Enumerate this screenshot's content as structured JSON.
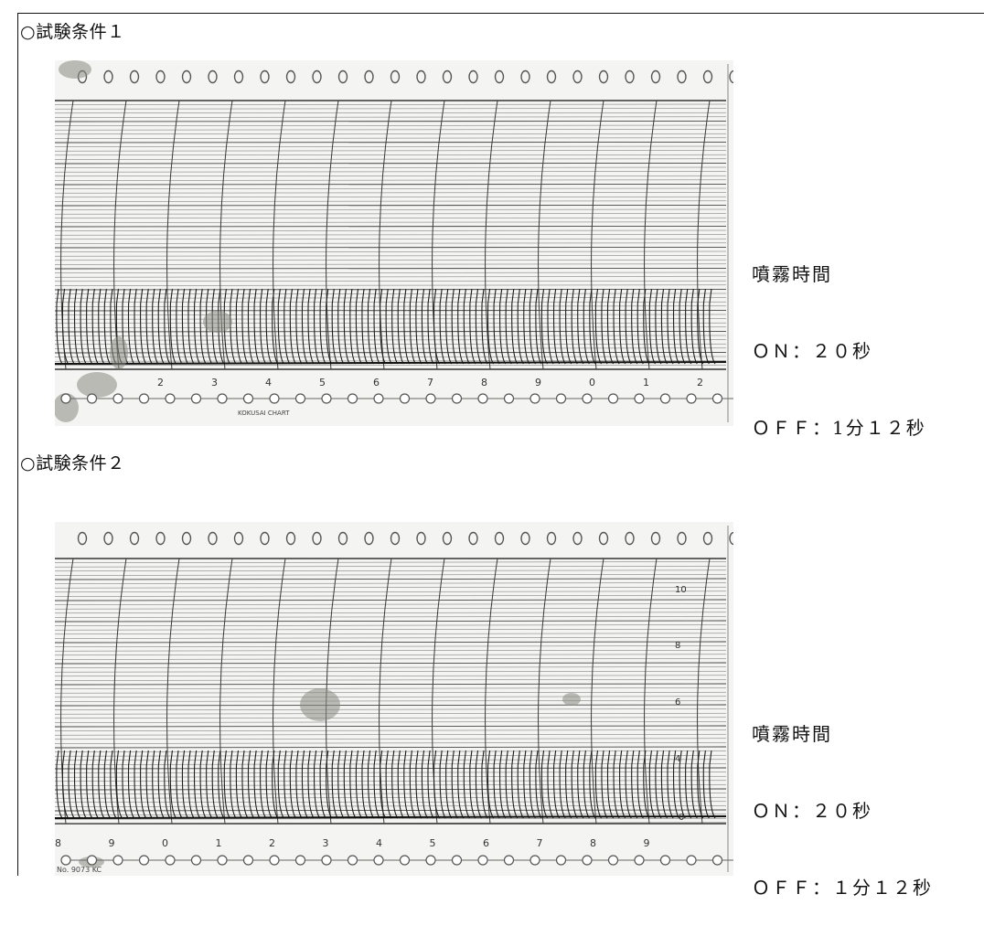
{
  "sections": [
    {
      "heading": "○試験条件１",
      "chart": {
        "bottom_scale": [
          "2",
          "3",
          "4",
          "5",
          "6",
          "7",
          "8",
          "9",
          "0",
          "1",
          "2"
        ],
        "brand_text": "KOKUSAI CHART"
      },
      "note": {
        "title": "噴霧時間",
        "on": "ＯＮ：２０秒",
        "off": "ＯＦＦ：1分１２秒"
      }
    },
    {
      "heading": "○試験条件２",
      "chart": {
        "bottom_scale": [
          "8",
          "9",
          "0",
          "1",
          "2",
          "3",
          "4",
          "5",
          "6",
          "7",
          "8",
          "9"
        ],
        "right_scale": [
          "10",
          "8",
          "6",
          "4"
        ],
        "right_scale_bottom": "0",
        "code_text": "No. 9073 KC"
      },
      "note": {
        "title": "噴霧時間",
        "on": "ＯＮ：２０秒",
        "off": "ＯＦＦ：１分１２秒"
      }
    }
  ],
  "colors": {
    "paper": "#f4f4f2",
    "grid": "#6a6a6a",
    "trace": "#1e1e1e",
    "stain": "#8a8a84"
  }
}
